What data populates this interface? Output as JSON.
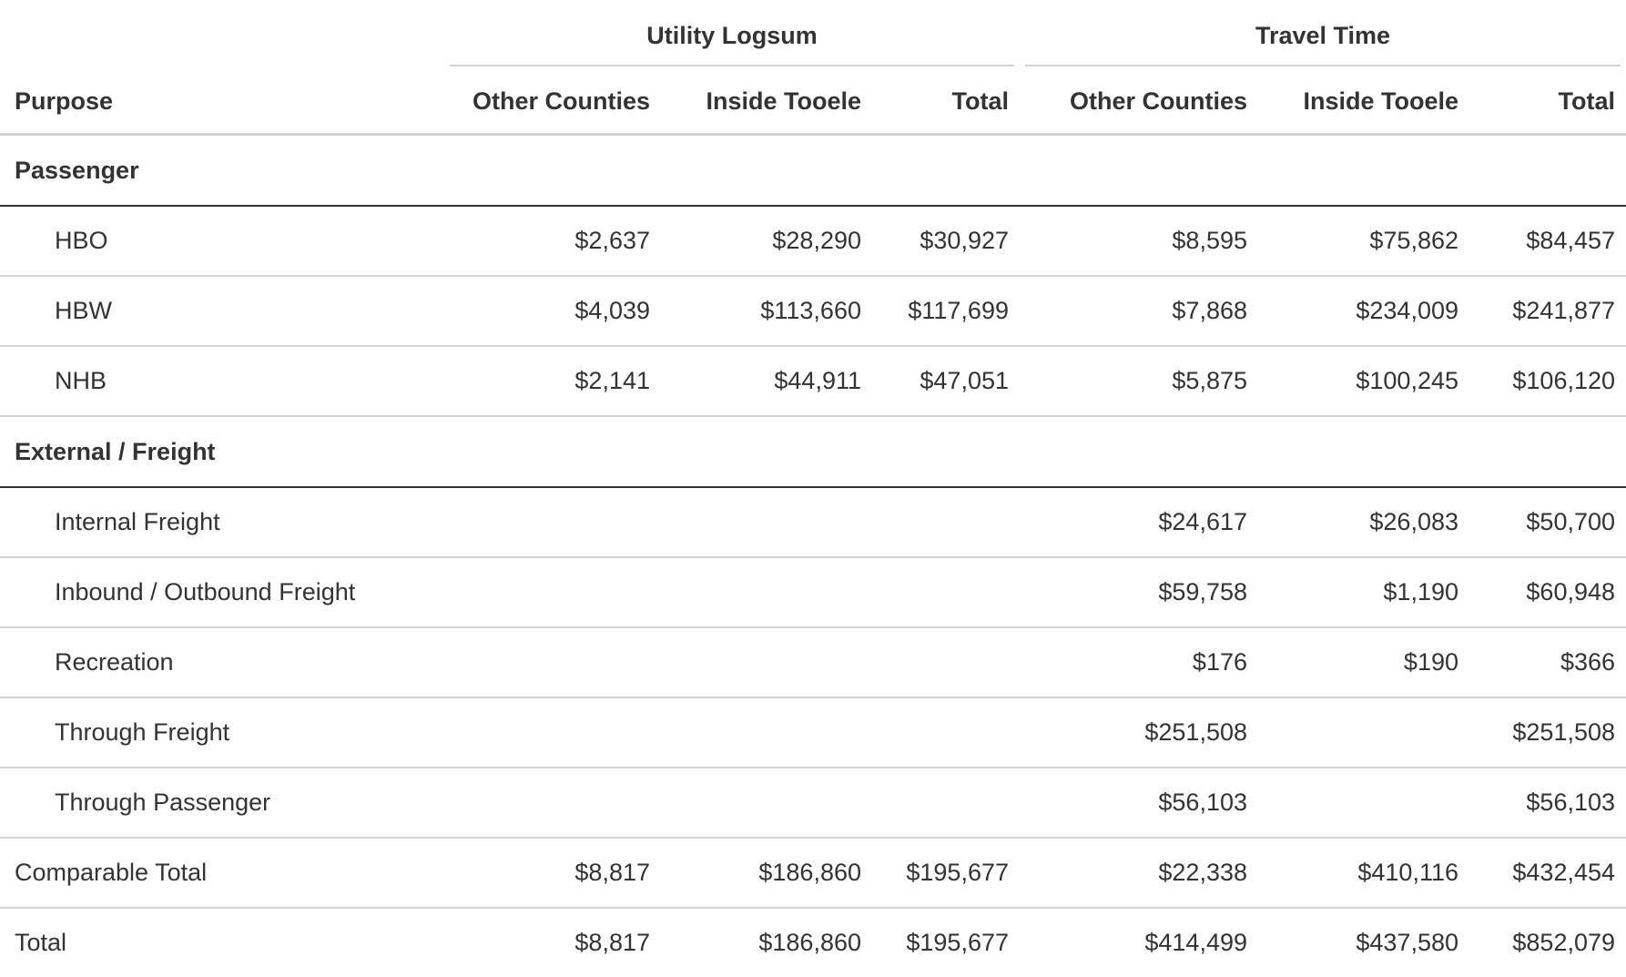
{
  "header": {
    "spanners": [
      {
        "label": "Utility Logsum"
      },
      {
        "label": "Travel Time"
      }
    ],
    "purpose_label": "Purpose",
    "columns": [
      {
        "label": "Other Counties"
      },
      {
        "label": "Inside Tooele"
      },
      {
        "label": "Total"
      },
      {
        "label": "Other Counties"
      },
      {
        "label": "Inside Tooele"
      },
      {
        "label": "Total"
      }
    ]
  },
  "groups": [
    {
      "label": "Passenger",
      "rows": [
        {
          "purpose": "HBO",
          "values": [
            "$2,637",
            "$28,290",
            "$30,927",
            "$8,595",
            "$75,862",
            "$84,457"
          ]
        },
        {
          "purpose": "HBW",
          "values": [
            "$4,039",
            "$113,660",
            "$117,699",
            "$7,868",
            "$234,009",
            "$241,877"
          ]
        },
        {
          "purpose": "NHB",
          "values": [
            "$2,141",
            "$44,911",
            "$47,051",
            "$5,875",
            "$100,245",
            "$106,120"
          ]
        }
      ]
    },
    {
      "label": "External / Freight",
      "rows": [
        {
          "purpose": "Internal Freight",
          "values": [
            "",
            "",
            "",
            "$24,617",
            "$26,083",
            "$50,700"
          ]
        },
        {
          "purpose": "Inbound / Outbound Freight",
          "values": [
            "",
            "",
            "",
            "$59,758",
            "$1,190",
            "$60,948"
          ]
        },
        {
          "purpose": "Recreation",
          "values": [
            "",
            "",
            "",
            "$176",
            "$190",
            "$366"
          ]
        },
        {
          "purpose": "Through Freight",
          "values": [
            "",
            "",
            "",
            "$251,508",
            "",
            "$251,508"
          ]
        },
        {
          "purpose": "Through Passenger",
          "values": [
            "",
            "",
            "",
            "$56,103",
            "",
            "$56,103"
          ]
        }
      ]
    }
  ],
  "summary": [
    {
      "purpose": "Comparable Total",
      "values": [
        "$8,817",
        "$186,860",
        "$195,677",
        "$22,338",
        "$410,116",
        "$432,454"
      ]
    },
    {
      "purpose": "Total",
      "values": [
        "$8,817",
        "$186,860",
        "$195,677",
        "$414,499",
        "$437,580",
        "$852,079"
      ]
    }
  ]
}
